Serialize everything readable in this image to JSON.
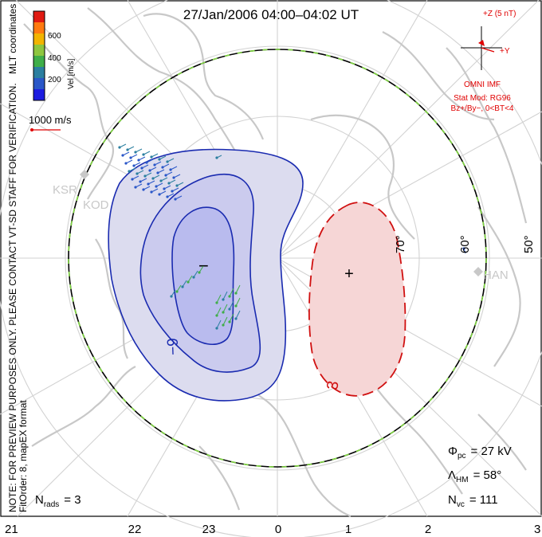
{
  "title": "27/Jan/2006 04:00–04:02 UT",
  "side_notes": {
    "mlt_coordinates": "MLT coordinates",
    "verification": "NOTE: FOR PREVIEW PURPOSES ONLY. PLEASE CONTACT VT-SD STAFF FOR VERIFICATION.",
    "fit": "FitOrder: 8, mapEX format"
  },
  "color_bar": {
    "label": "Vel [m/s]",
    "ticks": [
      "600",
      "400",
      "200"
    ],
    "colors": [
      "#e01a12",
      "#ff7a10",
      "#f2b400",
      "#8ec63f",
      "#3fae49",
      "#2b7fa0",
      "#2a57c8",
      "#1c1ce0"
    ]
  },
  "scale_vector": {
    "label": "1000 m/s",
    "color": "#e00000"
  },
  "imf": {
    "plus_z": "+Z (5 nT)",
    "plus_y": "+Y",
    "source": "OMNI IMF",
    "stat_mod": "Stat Mod: RG96",
    "condition": "Bz+/By−, 0<BT<4",
    "color": "#e00000"
  },
  "latitude_labels": [
    "70°",
    "60°",
    "50°"
  ],
  "radar_labels": [
    "KSR",
    "KOD",
    "HAN"
  ],
  "mlt_labels": [
    "21",
    "22",
    "23",
    "0",
    "1",
    "2",
    "3"
  ],
  "contour_labels": {
    "negative": "−9",
    "positive": "3"
  },
  "extrema_marks": {
    "minimum": "−",
    "maximum": "+"
  },
  "stats": {
    "phi_pc": {
      "symbol": "Φ",
      "sub": "pc",
      "text": "= 27 kV"
    },
    "lambda_hm": {
      "symbol": "Λ",
      "sub": "HM",
      "text": "= 58°"
    },
    "n_vc": {
      "symbol": "N",
      "sub": "vc",
      "text": "= 111"
    },
    "n_rads": {
      "symbol": "N",
      "sub": "rads",
      "text": "= 3"
    }
  },
  "colors": {
    "negative_cell_line": "#1a2bb0",
    "negative_cell_fill": "#dcdcef",
    "negative_cell_inner": "#b9bbee",
    "positive_cell_line": "#d01010",
    "positive_cell_fill": "#f6d6d6",
    "land": "#c8c8c8",
    "grid": "#d2d2d2",
    "hm_boundary_green": "#7fd640"
  }
}
